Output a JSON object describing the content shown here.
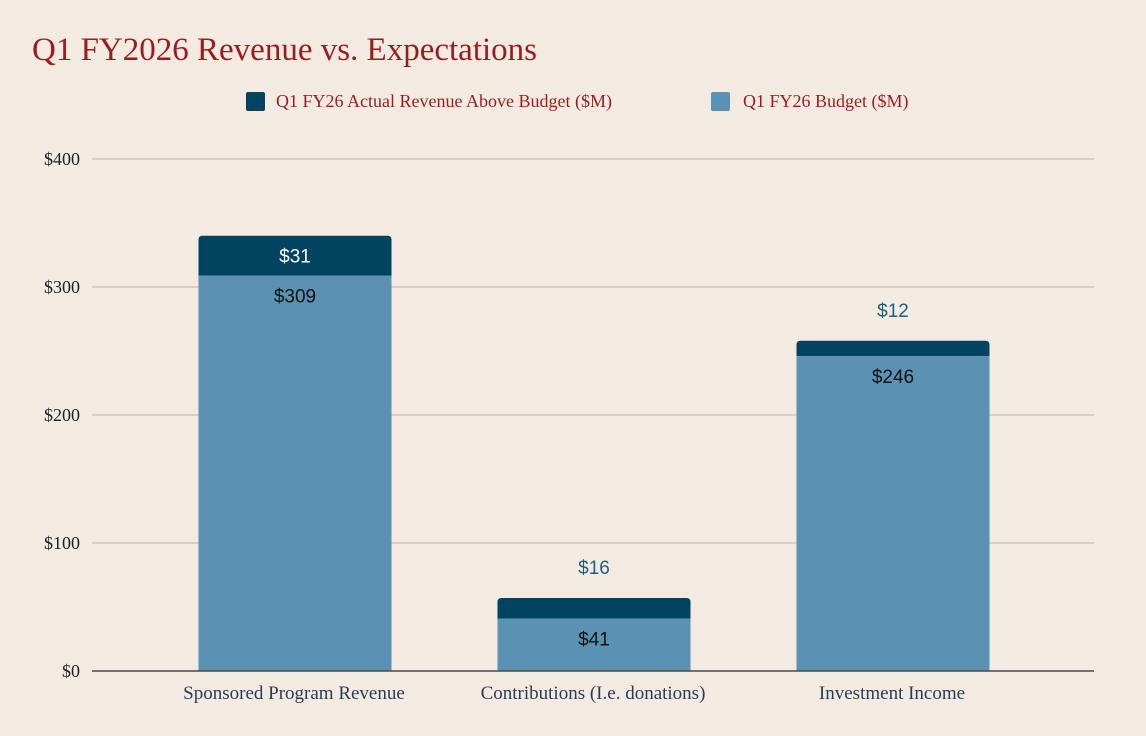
{
  "colors": {
    "background": "#f3ebe1",
    "title": "#9b1c1c",
    "legend_text": "#9b1c1c",
    "actual_above": "#02445f",
    "budget": "#5b91b2",
    "grid": "#d0c8bf",
    "axis": "#4a4a4a",
    "tick_text": "#222222",
    "category_text": "#2a3b57",
    "label_inside_dark": "#ffffff",
    "label_inside_light": "#111111",
    "label_outside": "#1f5f7e"
  },
  "chart_data": {
    "type": "bar",
    "stacked": true,
    "title": "Q1 FY2026 Revenue vs. Expectations",
    "xlabel": "",
    "ylabel": "",
    "ylim": [
      0,
      400
    ],
    "yticks": [
      0,
      100,
      200,
      300,
      400
    ],
    "ytick_labels": [
      "$0",
      "$100",
      "$200",
      "$300",
      "$400"
    ],
    "grid": true,
    "legend_position": "top-center",
    "categories": [
      "Sponsored Program Revenue",
      "Contributions (I.e. donations)",
      "Investment Income"
    ],
    "series": [
      {
        "name": "Q1 FY26 Budget ($M)",
        "color_key": "budget",
        "values": [
          309,
          41,
          246
        ],
        "labels": [
          "$309",
          "$41",
          "$246"
        ]
      },
      {
        "name": "Q1 FY26 Actual Revenue Above Budget ($M)",
        "color_key": "actual_above",
        "values": [
          31,
          16,
          12
        ],
        "labels": [
          "$31",
          "$16",
          "$12"
        ]
      }
    ],
    "legend_order": [
      "Q1 FY26 Actual Revenue Above Budget ($M)",
      "Q1 FY26 Budget ($M)"
    ]
  }
}
